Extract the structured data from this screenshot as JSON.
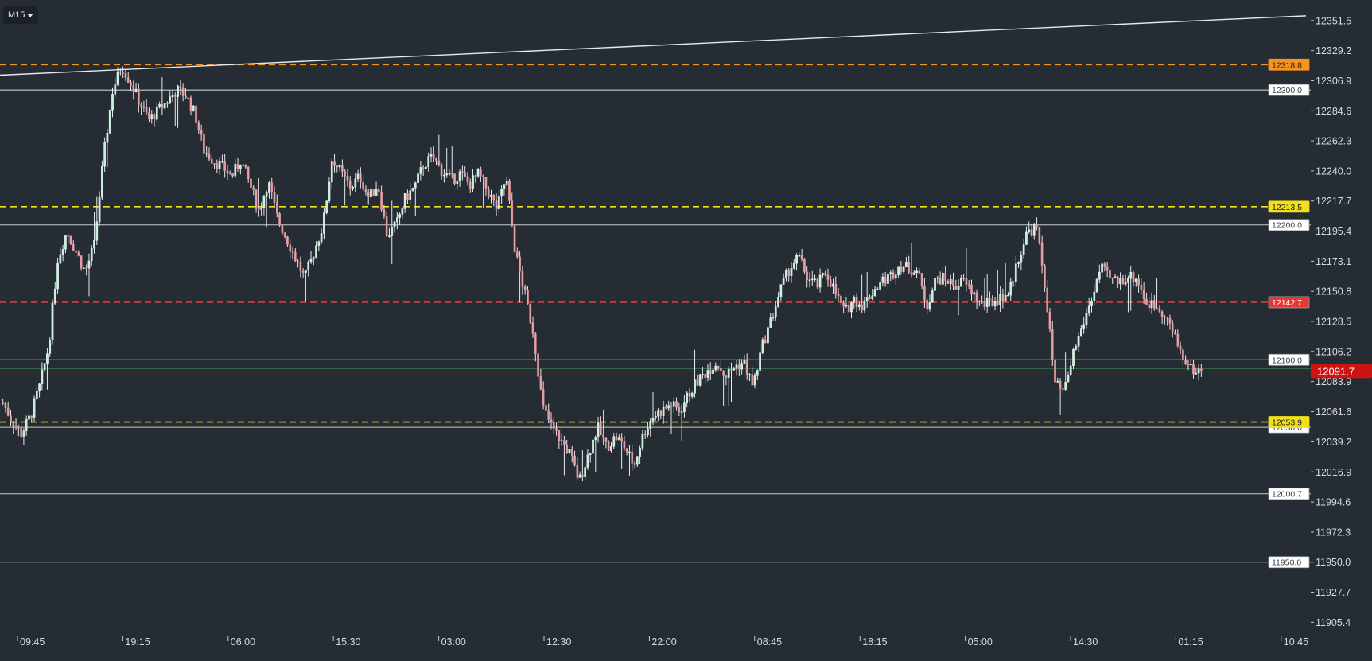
{
  "toolbar": {
    "timeframe": "M15"
  },
  "chart_data": {
    "type": "candlestick",
    "ylim": [
      11895.0,
      12362.0
    ],
    "y_ticks": [
      "12351.5",
      "12329.2",
      "12306.9",
      "12284.6",
      "12262.3",
      "12240.0",
      "12217.7",
      "12195.4",
      "12173.1",
      "12150.8",
      "12128.5",
      "12106.2",
      "12083.9",
      "12061.6",
      "12039.2",
      "12016.9",
      "11994.6",
      "11972.3",
      "11950.0",
      "11927.7",
      "11905.4"
    ],
    "x_ticks": [
      "09:45",
      "19:15",
      "06:00",
      "15:30",
      "03:00",
      "12:30",
      "22:00",
      "08:45",
      "18:15",
      "05:00",
      "14:30",
      "01:15",
      "10:45"
    ],
    "current_price": {
      "label": "12091.7",
      "value": 12091.7,
      "color": "#cc1414"
    },
    "levels": [
      {
        "label": "12318.8",
        "value": 12318.8,
        "color": "#f7941d",
        "style": "dashed"
      },
      {
        "label": "12300.0",
        "value": 12300.0,
        "color": "#c7ccd2",
        "style": "solid"
      },
      {
        "label": "12213.5",
        "value": 12213.5,
        "color": "#f2e01b",
        "style": "dashed"
      },
      {
        "label": "12200.0",
        "value": 12200.0,
        "color": "#c7ccd2",
        "style": "solid"
      },
      {
        "label": "12142.7",
        "value": 12142.7,
        "color": "#e53935",
        "style": "dashed"
      },
      {
        "label": "12100.0",
        "value": 12100.0,
        "color": "#c7ccd2",
        "style": "solid"
      },
      {
        "label": "12050.0",
        "value": 12050.0,
        "color": "#c7ccd2",
        "style": "solid"
      },
      {
        "label": "12053.9",
        "value": 12053.9,
        "color": "#f2e01b",
        "style": "dashed"
      },
      {
        "label": "12000.7",
        "value": 12000.7,
        "color": "#c7ccd2",
        "style": "solid"
      },
      {
        "label": "11950.0",
        "value": 11950.0,
        "color": "#c7ccd2",
        "style": "solid"
      }
    ],
    "trendline": {
      "start_value": 12311.0,
      "end_value": 12355.0,
      "color": "#e6e9ed"
    },
    "price_path": [
      12068,
      12055,
      12045,
      12058,
      12080,
      12110,
      12175,
      12195,
      12180,
      12165,
      12185,
      12250,
      12300,
      12318,
      12305,
      12290,
      12278,
      12285,
      12292,
      12300,
      12296,
      12282,
      12255,
      12248,
      12243,
      12236,
      12248,
      12230,
      12210,
      12232,
      12205,
      12190,
      12175,
      12160,
      12180,
      12200,
      12250,
      12238,
      12228,
      12236,
      12220,
      12230,
      12192,
      12200,
      12220,
      12228,
      12245,
      12250,
      12240,
      12233,
      12238,
      12230,
      12238,
      12225,
      12212,
      12235,
      12180,
      12150,
      12120,
      12065,
      12050,
      12040,
      12030,
      12010,
      12030,
      12050,
      12035,
      12043,
      12035,
      12022,
      12045,
      12058,
      12062,
      12067,
      12062,
      12075,
      12085,
      12092,
      12098,
      12088,
      12095,
      12098,
      12080,
      12110,
      12130,
      12152,
      12168,
      12176,
      12160,
      12155,
      12165,
      12150,
      12135,
      12145,
      12140,
      12150,
      12158,
      12162,
      12170,
      12168,
      12165,
      12140,
      12160,
      12160,
      12155,
      12158,
      12150,
      12140,
      12142,
      12146,
      12150,
      12175,
      12195,
      12198,
      12150,
      12082,
      12075,
      12105,
      12125,
      12145,
      12168,
      12160,
      12158,
      12162,
      12160,
      12142,
      12140,
      12135,
      12118,
      12102,
      12092,
      12091.7
    ],
    "colors": {
      "up": "#c7f0dc",
      "down": "#e8a0a4",
      "wick": "#e6e9ed",
      "background": "#262c33"
    }
  }
}
